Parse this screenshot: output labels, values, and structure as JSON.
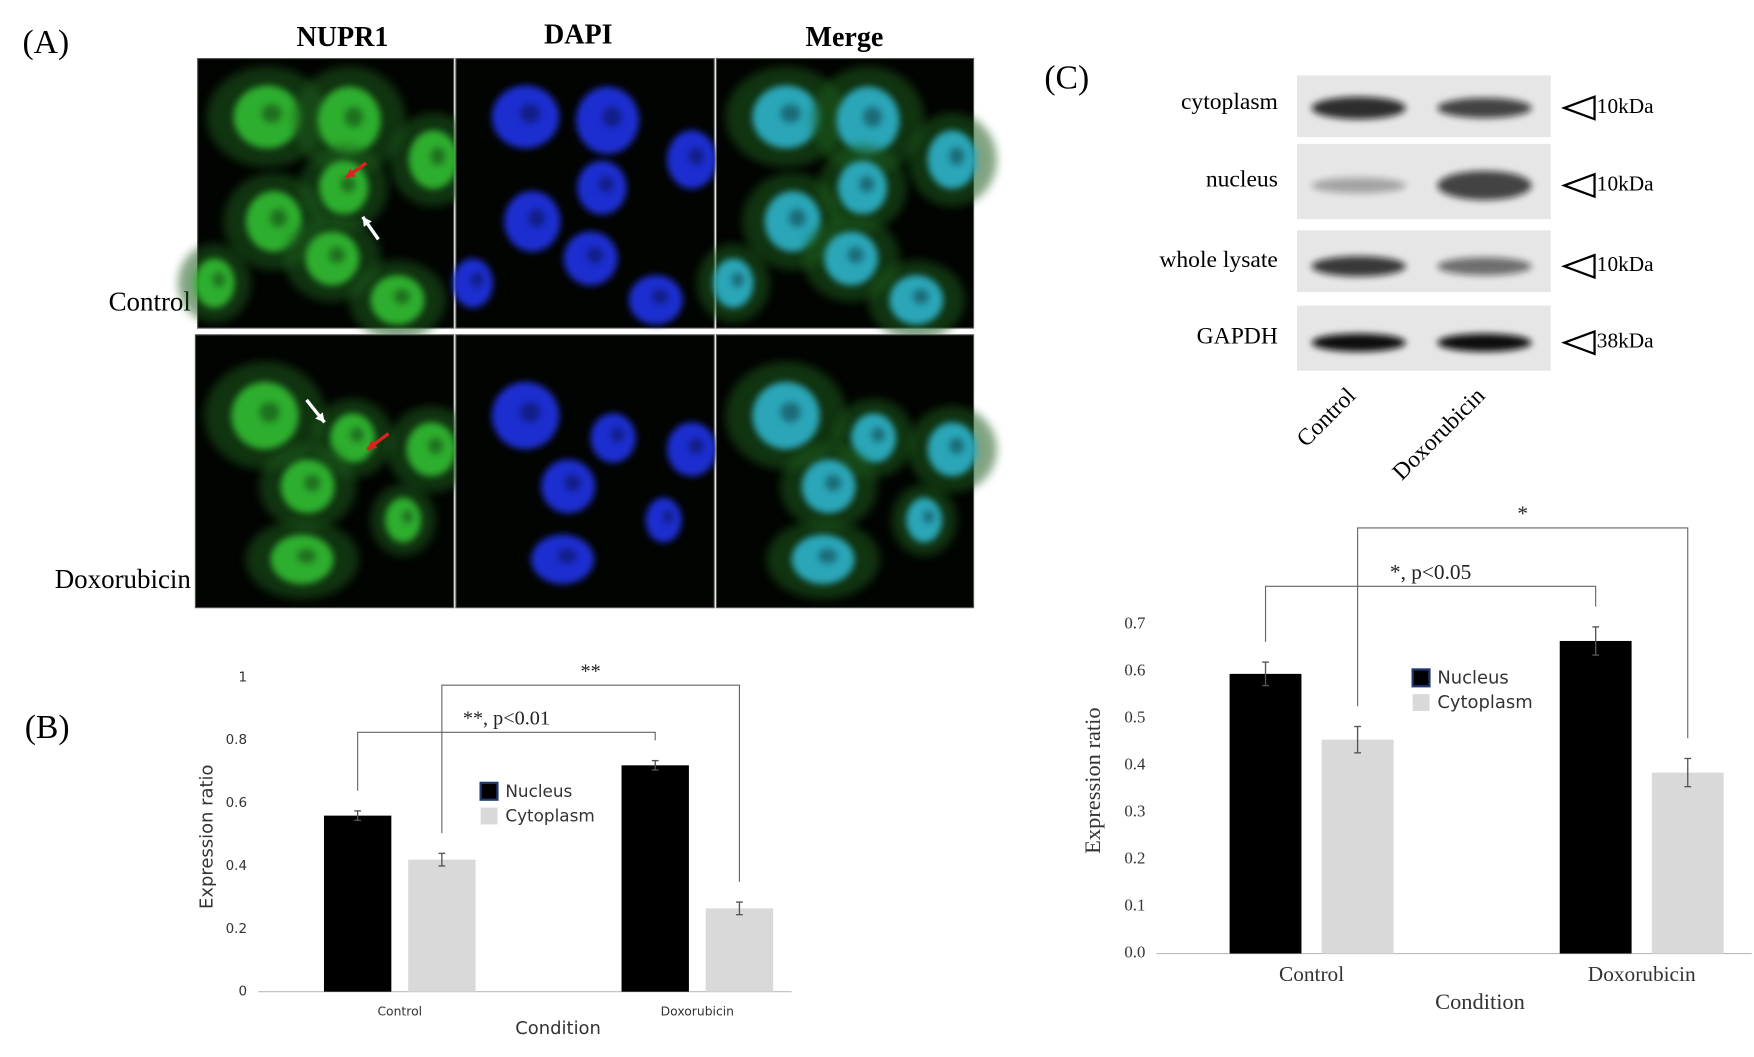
{
  "panel_a": {
    "label": "(A)",
    "columns": [
      "NUPR1",
      "DAPI",
      "Merge"
    ],
    "rows": [
      "Control",
      "Doxorubicin"
    ]
  },
  "panel_c_blot": {
    "label": "(C)",
    "rows": [
      {
        "name": "cytoplasm",
        "size": "10kDa"
      },
      {
        "name": "nucleus",
        "size": "10kDa"
      },
      {
        "name": "whole lysate",
        "size": "10kDa"
      },
      {
        "name": "GAPDH",
        "size": "38kDa"
      }
    ],
    "lanes": [
      "Control",
      "Doxorubicin"
    ]
  },
  "chart_data": [
    {
      "type": "bar",
      "label": "(B)",
      "x_label": "Condition",
      "y_label": "Expression ratio",
      "categories": [
        "Control",
        "Doxorubicin"
      ],
      "series": [
        {
          "name": "Nucleus",
          "color": "#000000",
          "values": [
            0.56,
            0.72
          ],
          "errors": [
            0.015,
            0.015
          ]
        },
        {
          "name": "Cytoplasm",
          "color": "#d9d9d9",
          "values": [
            0.42,
            0.265
          ],
          "errors": [
            0.02,
            0.02
          ]
        }
      ],
      "ylim": [
        0,
        1
      ],
      "yticks": [
        0,
        0.2,
        0.4,
        0.6,
        0.8,
        1
      ],
      "annotations": [
        "**, p<0.01",
        "**"
      ]
    },
    {
      "type": "bar",
      "label": "",
      "x_label": "Condition",
      "y_label": "Expression ratio",
      "categories": [
        "Control",
        "Doxorubicin"
      ],
      "series": [
        {
          "name": "Nucleus",
          "color": "#000000",
          "values": [
            0.595,
            0.665
          ],
          "errors": [
            0.025,
            0.03
          ]
        },
        {
          "name": "Cytoplasm",
          "color": "#d9d9d9",
          "values": [
            0.455,
            0.385
          ],
          "errors": [
            0.028,
            0.03
          ]
        }
      ],
      "ylim": [
        0,
        0.7
      ],
      "yticks": [
        {
          "value": 0,
          "label": "0.0"
        },
        0.1,
        0.2,
        0.3,
        0.4,
        0.5,
        0.6,
        0.7
      ],
      "annotations": [
        "*, p<0.05",
        "*"
      ]
    }
  ]
}
